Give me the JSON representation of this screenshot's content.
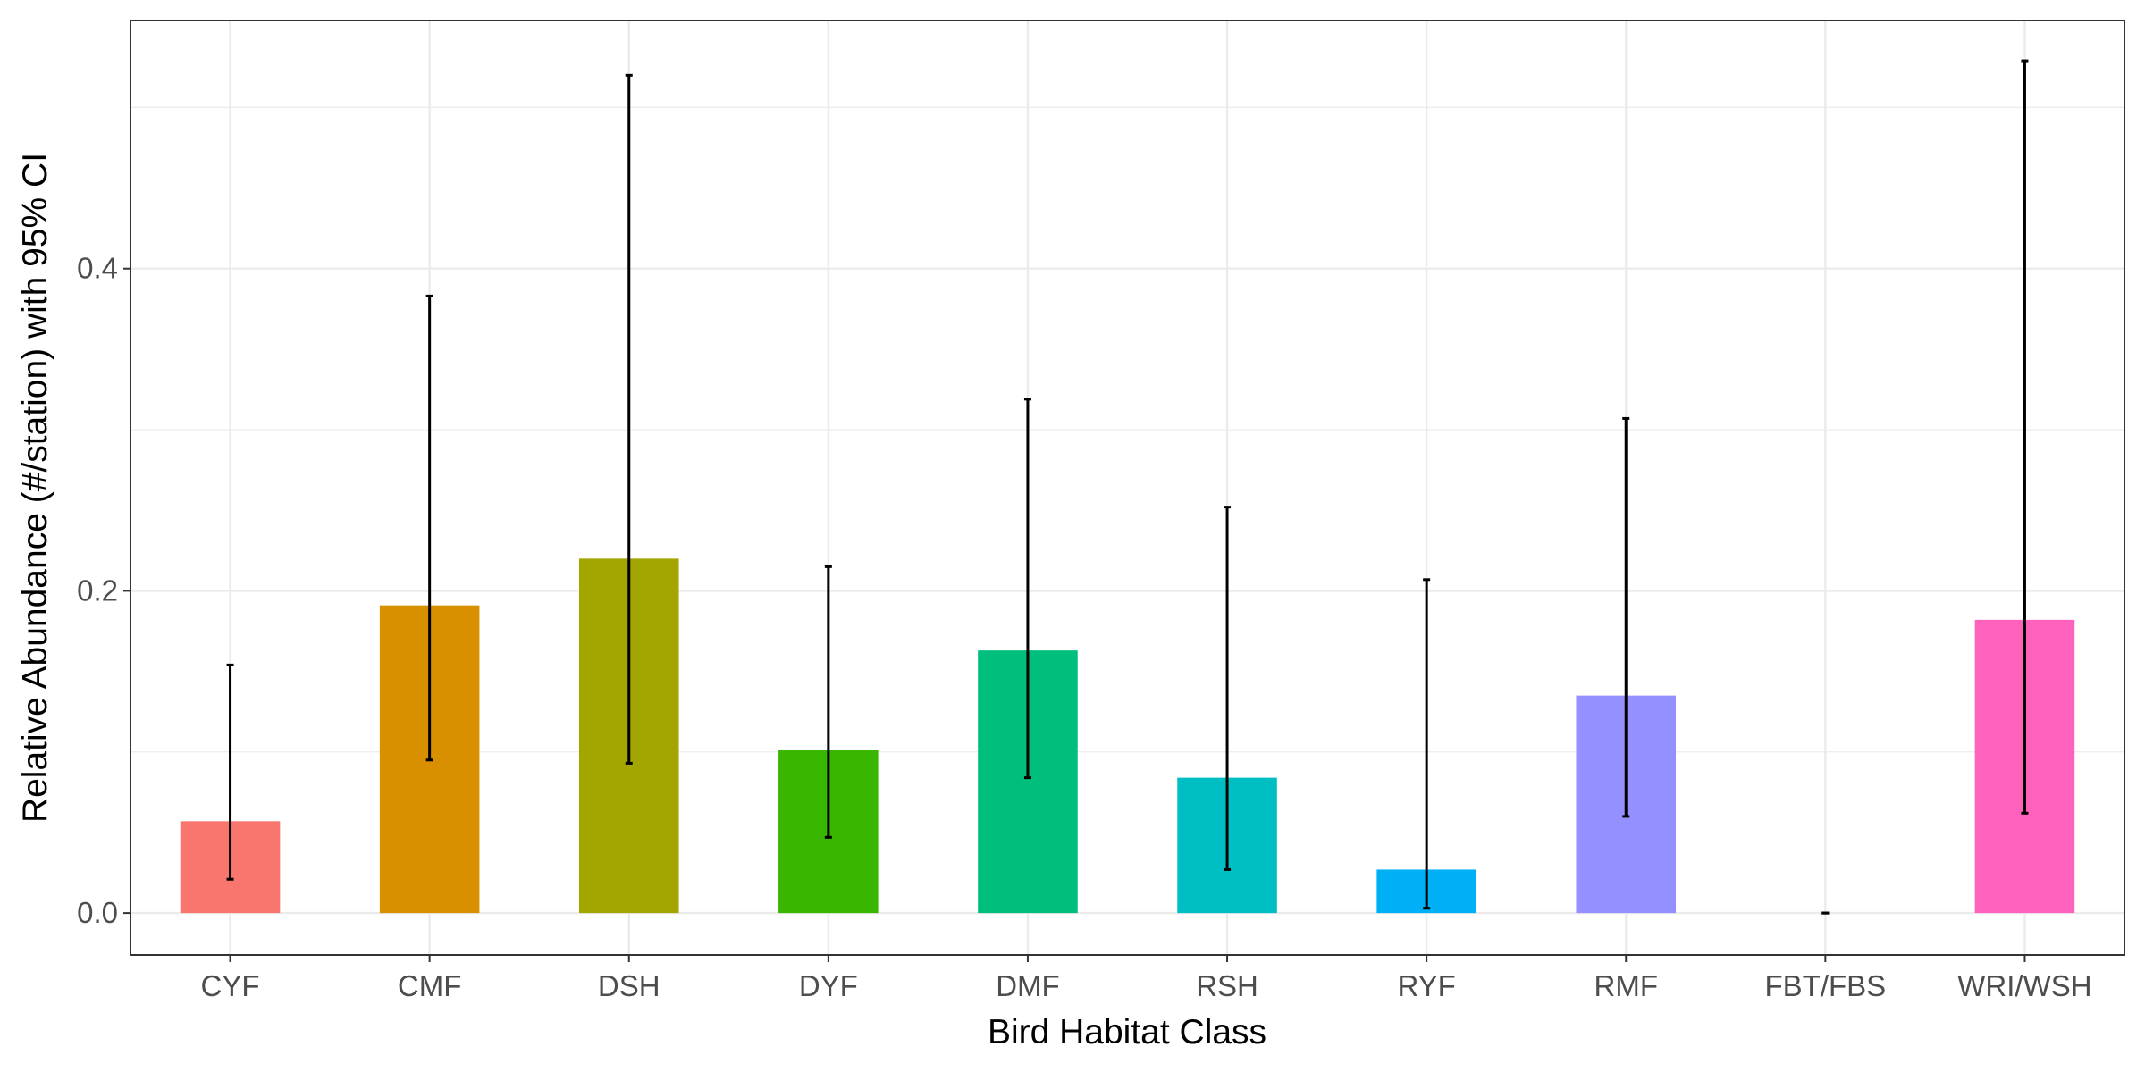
{
  "chart_data": {
    "type": "bar",
    "title": "",
    "xlabel": "Bird Habitat Class",
    "ylabel": "Relative Abundance (#/station) with 95% CI",
    "categories": [
      "CYF",
      "CMF",
      "DSH",
      "DYF",
      "DMF",
      "RSH",
      "RYF",
      "RMF",
      "FBT/FBS",
      "WRI/WSH"
    ],
    "values": [
      0.057,
      0.191,
      0.22,
      0.101,
      0.163,
      0.084,
      0.027,
      0.135,
      0.0,
      0.182
    ],
    "ci_lower": [
      0.021,
      0.095,
      0.093,
      0.047,
      0.084,
      0.027,
      0.003,
      0.06,
      0.0,
      0.062
    ],
    "ci_upper": [
      0.154,
      0.383,
      0.52,
      0.215,
      0.319,
      0.252,
      0.207,
      0.307,
      0.0,
      0.529
    ],
    "colors": [
      "#F8766D",
      "#D89000",
      "#A3A500",
      "#39B600",
      "#00BF7D",
      "#00BFC4",
      "#00B0F6",
      "#9590FF",
      "#E76BF3",
      "#FF62BC"
    ],
    "ylim": [
      -0.026,
      0.554
    ],
    "yticks": [
      0.0,
      0.2,
      0.4
    ],
    "ytick_labels": [
      "0.0",
      "0.2",
      "0.4"
    ],
    "grid": true,
    "legend": "none"
  }
}
